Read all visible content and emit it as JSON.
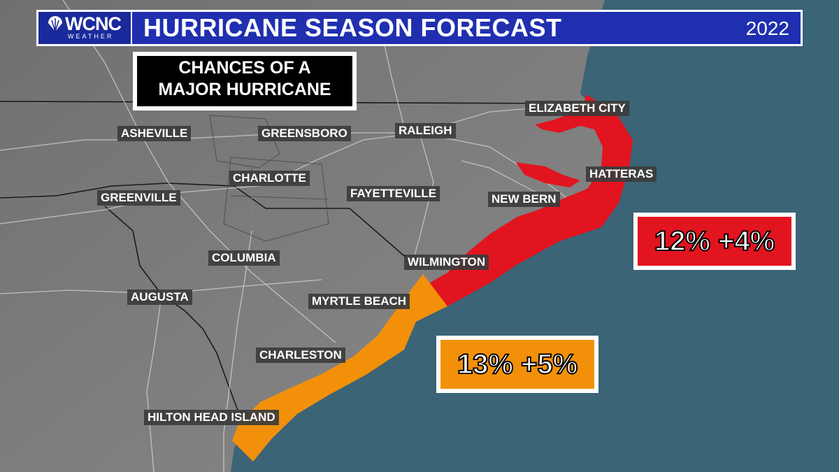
{
  "header": {
    "logo_text": "WCNC",
    "logo_subtext": "WEATHER",
    "title": "HURRICANE SEASON FORECAST",
    "year": "2022"
  },
  "subtitle": {
    "line1": "CHANCES OF A",
    "line2": "MAJOR HURRICANE"
  },
  "cities": {
    "elizabeth_city": "ELIZABETH CITY",
    "asheville": "ASHEVILLE",
    "greensboro": "GREENSBORO",
    "raleigh": "RALEIGH",
    "charlotte": "CHARLOTTE",
    "hatteras": "HATTERAS",
    "greenville": "GREENVILLE",
    "fayetteville": "FAYETTEVILLE",
    "new_bern": "NEW BERN",
    "columbia": "COLUMBIA",
    "wilmington": "WILMINGTON",
    "augusta": "AUGUSTA",
    "myrtle_beach": "MYRTLE BEACH",
    "charleston": "CHARLESTON",
    "hilton_head": "HILTON HEAD ISLAND"
  },
  "zones": {
    "north_carolina": {
      "label": "12% +4%",
      "color": "#e2141f"
    },
    "south_carolina": {
      "label": "13% +5%",
      "color": "#f3900a"
    }
  },
  "colors": {
    "land": "#7c7c7c",
    "ocean": "#3b6477",
    "header": "#1f2fb0"
  }
}
